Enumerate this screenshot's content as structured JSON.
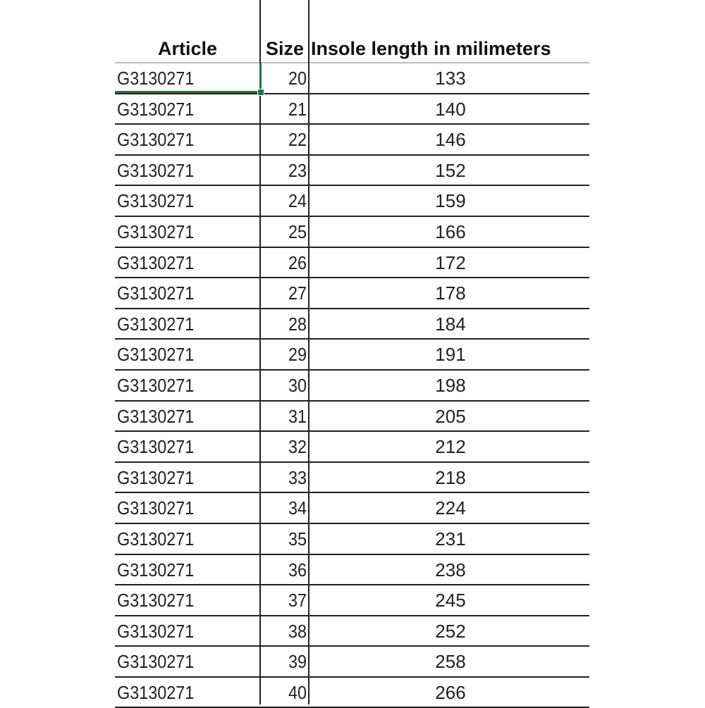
{
  "headers": {
    "article": "Article",
    "size": "Size",
    "length": "Insole length in milimeters"
  },
  "selection_color": "#217346",
  "rows": [
    {
      "article": "G3130271",
      "size": "20",
      "length": "133"
    },
    {
      "article": "G3130271",
      "size": "21",
      "length": "140"
    },
    {
      "article": "G3130271",
      "size": "22",
      "length": "146"
    },
    {
      "article": "G3130271",
      "size": "23",
      "length": "152"
    },
    {
      "article": "G3130271",
      "size": "24",
      "length": "159"
    },
    {
      "article": "G3130271",
      "size": "25",
      "length": "166"
    },
    {
      "article": "G3130271",
      "size": "26",
      "length": "172"
    },
    {
      "article": "G3130271",
      "size": "27",
      "length": "178"
    },
    {
      "article": "G3130271",
      "size": "28",
      "length": "184"
    },
    {
      "article": "G3130271",
      "size": "29",
      "length": "191"
    },
    {
      "article": "G3130271",
      "size": "30",
      "length": "198"
    },
    {
      "article": "G3130271",
      "size": "31",
      "length": "205"
    },
    {
      "article": "G3130271",
      "size": "32",
      "length": "212"
    },
    {
      "article": "G3130271",
      "size": "33",
      "length": "218"
    },
    {
      "article": "G3130271",
      "size": "34",
      "length": "224"
    },
    {
      "article": "G3130271",
      "size": "35",
      "length": "231"
    },
    {
      "article": "G3130271",
      "size": "36",
      "length": "238"
    },
    {
      "article": "G3130271",
      "size": "37",
      "length": "245"
    },
    {
      "article": "G3130271",
      "size": "38",
      "length": "252"
    },
    {
      "article": "G3130271",
      "size": "39",
      "length": "258"
    },
    {
      "article": "G3130271",
      "size": "40",
      "length": "266"
    }
  ]
}
